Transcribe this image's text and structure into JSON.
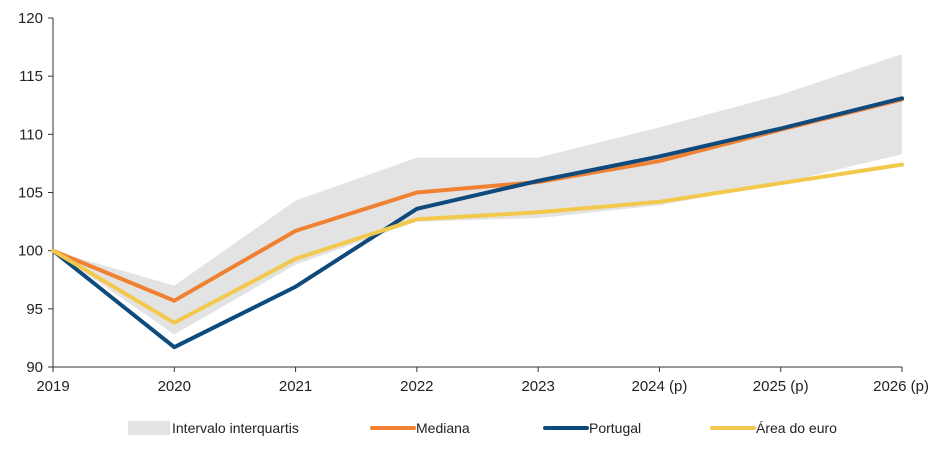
{
  "chart_data": {
    "type": "line",
    "title": "",
    "xlabel": "",
    "ylabel": "",
    "categories": [
      "2019",
      "2020",
      "2021",
      "2022",
      "2023",
      "2024 (p)",
      "2025 (p)",
      "2026 (p)"
    ],
    "ylim": [
      90,
      120
    ],
    "yticks": [
      90,
      95,
      100,
      105,
      110,
      115,
      120
    ],
    "grid": false,
    "legend_position": "bottom",
    "band": {
      "name": "Intervalo interquartis",
      "color": "#e3e3e3",
      "upper": [
        100,
        97.0,
        104.3,
        108.0,
        108.0,
        110.6,
        113.4,
        116.9
      ],
      "lower": [
        100,
        92.8,
        98.8,
        102.5,
        102.8,
        103.9,
        105.8,
        108.3
      ]
    },
    "series": [
      {
        "name": "Mediana",
        "color": "#f08132",
        "values": [
          100,
          95.7,
          101.7,
          105.0,
          105.9,
          107.7,
          110.4,
          113.0
        ]
      },
      {
        "name": "Portugal",
        "color": "#0e4a7b",
        "values": [
          100,
          91.7,
          96.9,
          103.6,
          106.0,
          108.1,
          110.5,
          113.1
        ]
      },
      {
        "name": "Área do euro",
        "color": "#f2c94c",
        "values": [
          100,
          93.8,
          99.3,
          102.7,
          103.3,
          104.2,
          105.8,
          107.4
        ]
      }
    ]
  }
}
